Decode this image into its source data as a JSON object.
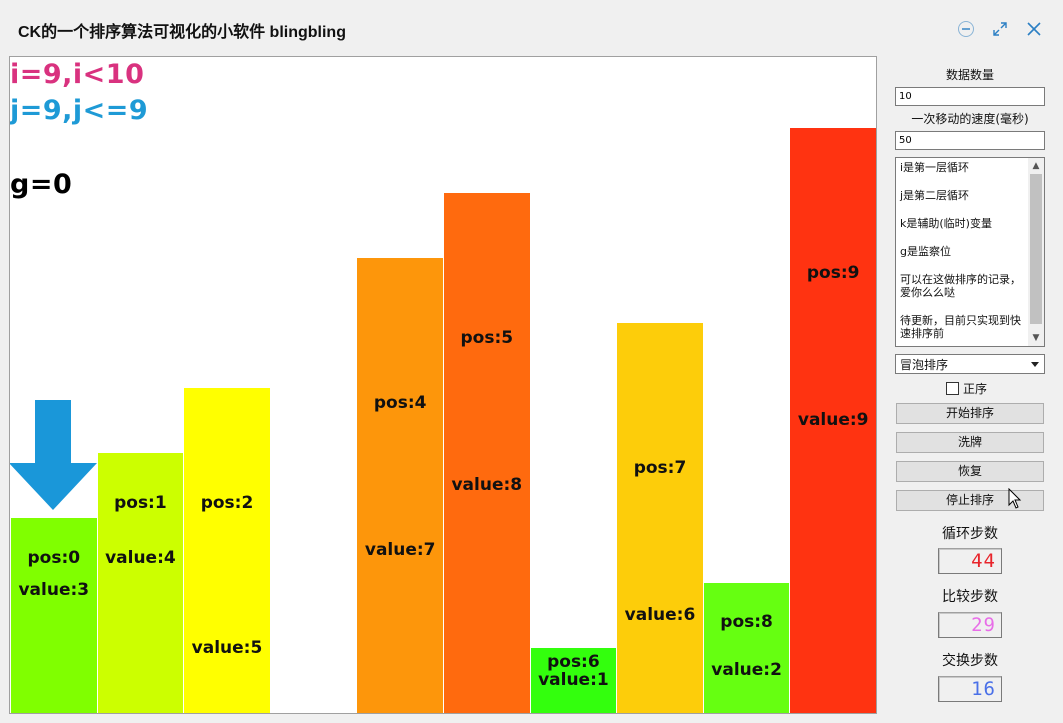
{
  "window": {
    "title": "CK的一个排序算法可视化的小软件 blingbling"
  },
  "canvas": {
    "var_i": "i=9,i<10",
    "var_j": "j=9,j<=9",
    "var_g": "g=0",
    "bars": [
      {
        "pos_label": "pos:0",
        "value_label": "value:3",
        "value": 3,
        "color": "#80ff00"
      },
      {
        "pos_label": "pos:1",
        "value_label": "value:4",
        "value": 4,
        "color": "#ccff00"
      },
      {
        "pos_label": "pos:2",
        "value_label": "value:5",
        "value": 5,
        "color": "#ffff00"
      },
      {
        "pos_label": "",
        "value_label": "",
        "value": 0,
        "color": "#ffffff"
      },
      {
        "pos_label": "pos:4",
        "value_label": "value:7",
        "value": 7,
        "color": "#fd960b"
      },
      {
        "pos_label": "pos:5",
        "value_label": "value:8",
        "value": 8,
        "color": "#ff6a0e"
      },
      {
        "pos_label": "pos:6",
        "value_label": "value:1",
        "value": 1,
        "color": "#33ff0d"
      },
      {
        "pos_label": "pos:7",
        "value_label": "value:6",
        "value": 6,
        "color": "#fdcd0a"
      },
      {
        "pos_label": "pos:8",
        "value_label": "value:2",
        "value": 2,
        "color": "#66ff11"
      },
      {
        "pos_label": "pos:9",
        "value_label": "value:9",
        "value": 9,
        "color": "#ff3311"
      }
    ],
    "arrow_color": "#1a97d9"
  },
  "panel": {
    "count_label": "数据数量",
    "count_value": "10",
    "speed_label": "一次移动的速度(毫秒)",
    "speed_value": "50",
    "notes": [
      "i是第一层循环",
      "j是第二层循环",
      "k是辅助(临时)变量",
      "g是监察位",
      "可以在这做排序的记录，爱你么么哒",
      "待更新，目前只实现到快速排序前"
    ],
    "algorithm_selected": "冒泡排序",
    "ascending_label": "正序",
    "ascending_checked": false,
    "buttons": {
      "start": "开始排序",
      "shuffle": "洗牌",
      "restore": "恢复",
      "stop": "停止排序"
    },
    "loop_steps_label": "循环步数",
    "loop_steps_value": "44",
    "loop_steps_color": "#e8242b",
    "compare_steps_label": "比较步数",
    "compare_steps_value": "29",
    "compare_steps_color": "#e86de8",
    "swap_steps_label": "交换步数",
    "swap_steps_value": "16",
    "swap_steps_color": "#4a70e8"
  },
  "icons": {
    "minimize": "minimize-icon",
    "maximize": "maximize-icon",
    "close": "close-icon",
    "pointer": "mouse-pointer-icon",
    "down_arrow": "down-arrow-icon"
  }
}
